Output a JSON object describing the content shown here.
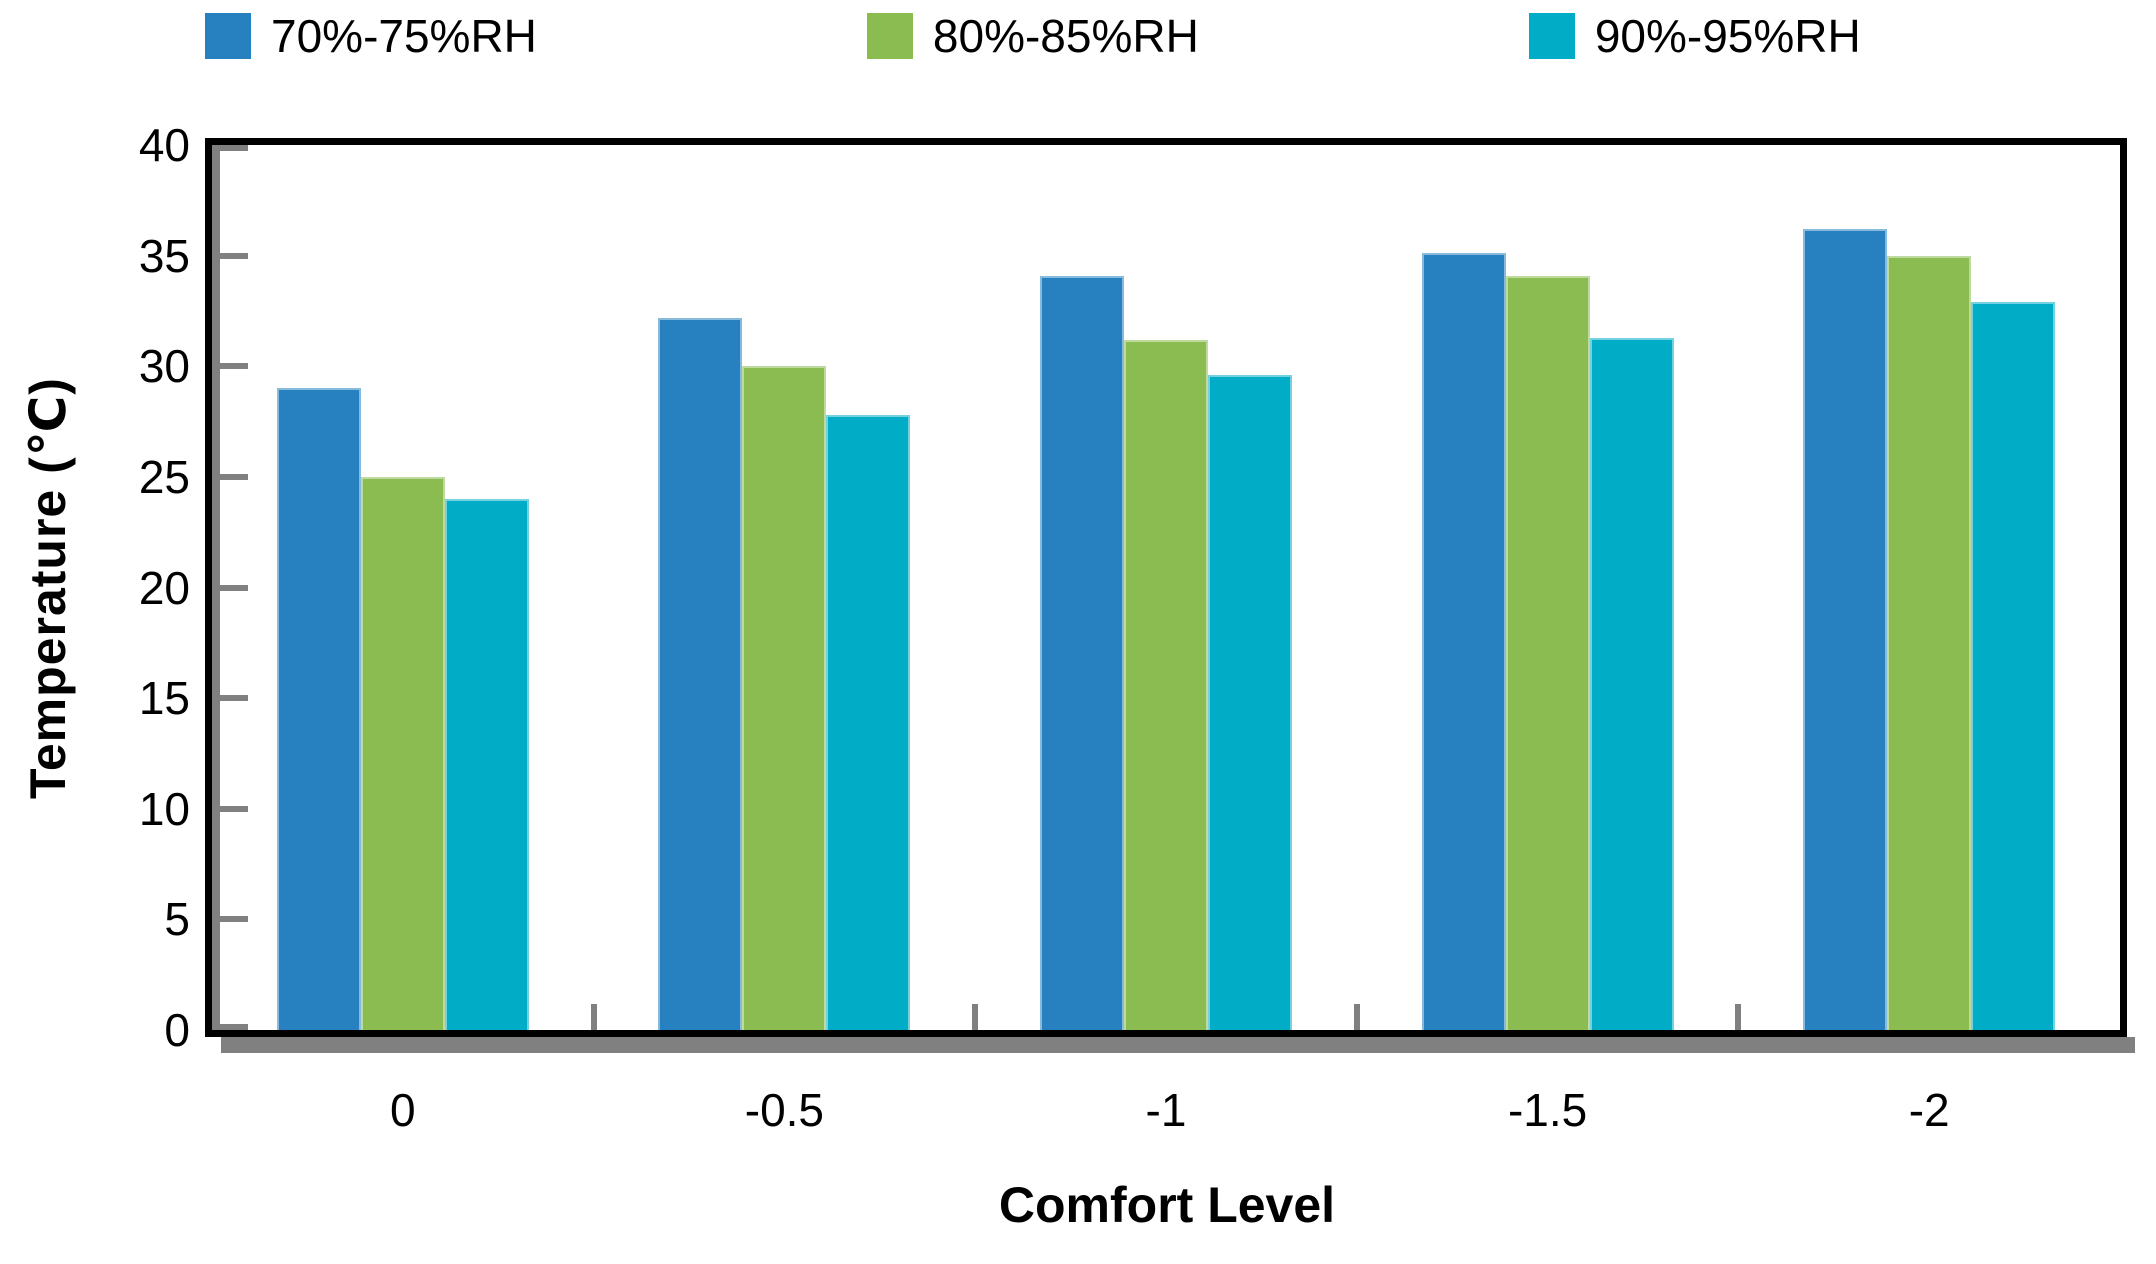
{
  "chart_data": {
    "type": "bar",
    "title": "",
    "xlabel": "Comfort Level",
    "ylabel": "Temperature (℃)",
    "categories": [
      "0",
      "-0.5",
      "-1",
      "-1.5",
      "-2"
    ],
    "series": [
      {
        "name": "70%-75%RH",
        "color": "#2781C0",
        "values": [
          29.0,
          32.2,
          34.1,
          35.1,
          36.2
        ]
      },
      {
        "name": "80%-85%RH",
        "color": "#8BBC51",
        "values": [
          25.0,
          30.0,
          31.2,
          34.1,
          35.0
        ]
      },
      {
        "name": "90%-95%RH",
        "color": "#00ACC6",
        "values": [
          24.0,
          27.8,
          29.6,
          31.3,
          32.9
        ]
      }
    ],
    "ylim": [
      0,
      40
    ],
    "ytick_step": 5,
    "yticks": [
      "0",
      "5",
      "10",
      "15",
      "20",
      "25",
      "30",
      "35",
      "40"
    ],
    "grid": false,
    "legend_position": "top",
    "axis_color": "#808080",
    "frame_color": "#000000",
    "plot_background": "#ffffff"
  }
}
